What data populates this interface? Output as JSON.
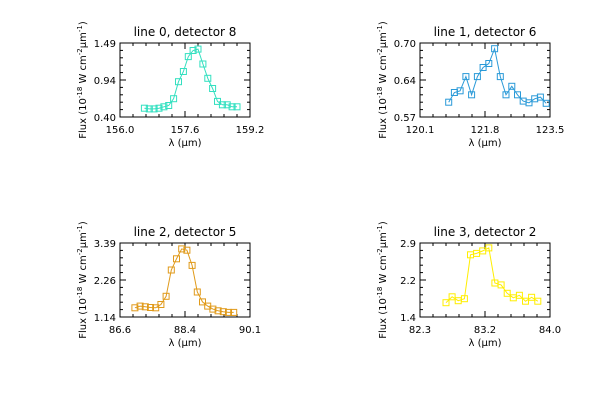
{
  "chart_data": [
    {
      "type": "line",
      "title": "line 0, detector 8",
      "xlabel": "λ (μm)",
      "ylabel_parts": [
        "Flux (10",
        "-18",
        " W cm",
        "-2",
        "μm",
        "-1",
        ")"
      ],
      "xlim": [
        156.0,
        159.2
      ],
      "ylim": [
        0.4,
        1.49
      ],
      "xticks": [
        "156.0",
        "157.6",
        "159.2"
      ],
      "yticks": [
        "0.40",
        "0.94",
        "1.49"
      ],
      "color": "#33e0c0",
      "x": [
        156.6,
        156.72,
        156.84,
        156.96,
        157.08,
        157.2,
        157.32,
        157.44,
        157.56,
        157.68,
        157.8,
        157.92,
        158.04,
        158.16,
        158.28,
        158.4,
        158.52,
        158.64,
        158.76,
        158.88
      ],
      "y": [
        0.53,
        0.52,
        0.52,
        0.53,
        0.55,
        0.57,
        0.67,
        0.92,
        1.07,
        1.29,
        1.38,
        1.4,
        1.18,
        0.97,
        0.82,
        0.63,
        0.58,
        0.58,
        0.55,
        0.55
      ]
    },
    {
      "type": "line",
      "title": "line 1, detector 6",
      "xlabel": "λ (μm)",
      "ylabel_parts": [
        "Flux (10",
        "-18",
        " W cm",
        "-2",
        "μm",
        "-1",
        ")"
      ],
      "xlim": [
        120.1,
        123.5
      ],
      "ylim": [
        0.57,
        0.7
      ],
      "xticks": [
        "120.1",
        "121.8",
        "123.5"
      ],
      "yticks": [
        "0.57",
        "0.64",
        "0.70"
      ],
      "color": "#2a9ad8",
      "x": [
        120.85,
        121.0,
        121.15,
        121.3,
        121.45,
        121.6,
        121.75,
        121.9,
        122.05,
        122.2,
        122.35,
        122.5,
        122.65,
        122.8,
        122.95,
        123.1,
        123.25,
        123.4
      ],
      "y": [
        0.596,
        0.613,
        0.616,
        0.641,
        0.609,
        0.641,
        0.657,
        0.664,
        0.69,
        0.641,
        0.609,
        0.624,
        0.609,
        0.598,
        0.595,
        0.602,
        0.605,
        0.594
      ]
    },
    {
      "type": "line",
      "title": "line 2, detector 5",
      "xlabel": "λ (μm)",
      "ylabel_parts": [
        "Flux (10",
        "-18",
        " W cm",
        "-2",
        "μm",
        "-1",
        ")"
      ],
      "xlim": [
        86.6,
        90.1
      ],
      "ylim": [
        1.14,
        3.39
      ],
      "xticks": [
        "86.6",
        "88.4",
        "90.1"
      ],
      "yticks": [
        "1.14",
        "2.26",
        "3.39"
      ],
      "color": "#e09a1a",
      "x": [
        87.0,
        87.14,
        87.28,
        87.42,
        87.56,
        87.7,
        87.84,
        87.98,
        88.12,
        88.26,
        88.4,
        88.54,
        88.68,
        88.82,
        88.96,
        89.1,
        89.24,
        89.38,
        89.52,
        89.66
      ],
      "y": [
        1.42,
        1.47,
        1.45,
        1.43,
        1.42,
        1.52,
        1.77,
        2.57,
        2.91,
        3.21,
        3.17,
        2.71,
        1.9,
        1.6,
        1.47,
        1.38,
        1.33,
        1.3,
        1.28,
        1.28
      ]
    },
    {
      "type": "line",
      "title": "line 3, detector 2",
      "xlabel": "λ (μm)",
      "ylabel_parts": [
        "Flux (10",
        "-18",
        " W cm",
        "-2",
        "μm",
        "-1",
        ")"
      ],
      "xlim": [
        82.3,
        84.0
      ],
      "ylim": [
        1.4,
        2.9
      ],
      "xticks": [
        "82.3",
        "83.2",
        "84.0"
      ],
      "yticks": [
        "1.4",
        "2.2",
        "2.9"
      ],
      "color": "#ffee00",
      "x": [
        82.64,
        82.72,
        82.8,
        82.88,
        82.96,
        83.04,
        83.12,
        83.2,
        83.28,
        83.36,
        83.44,
        83.52,
        83.6,
        83.68,
        83.76,
        83.84
      ],
      "y": [
        1.69,
        1.81,
        1.73,
        1.77,
        2.66,
        2.69,
        2.74,
        2.8,
        2.09,
        2.05,
        1.88,
        1.79,
        1.84,
        1.72,
        1.8,
        1.72
      ]
    }
  ]
}
